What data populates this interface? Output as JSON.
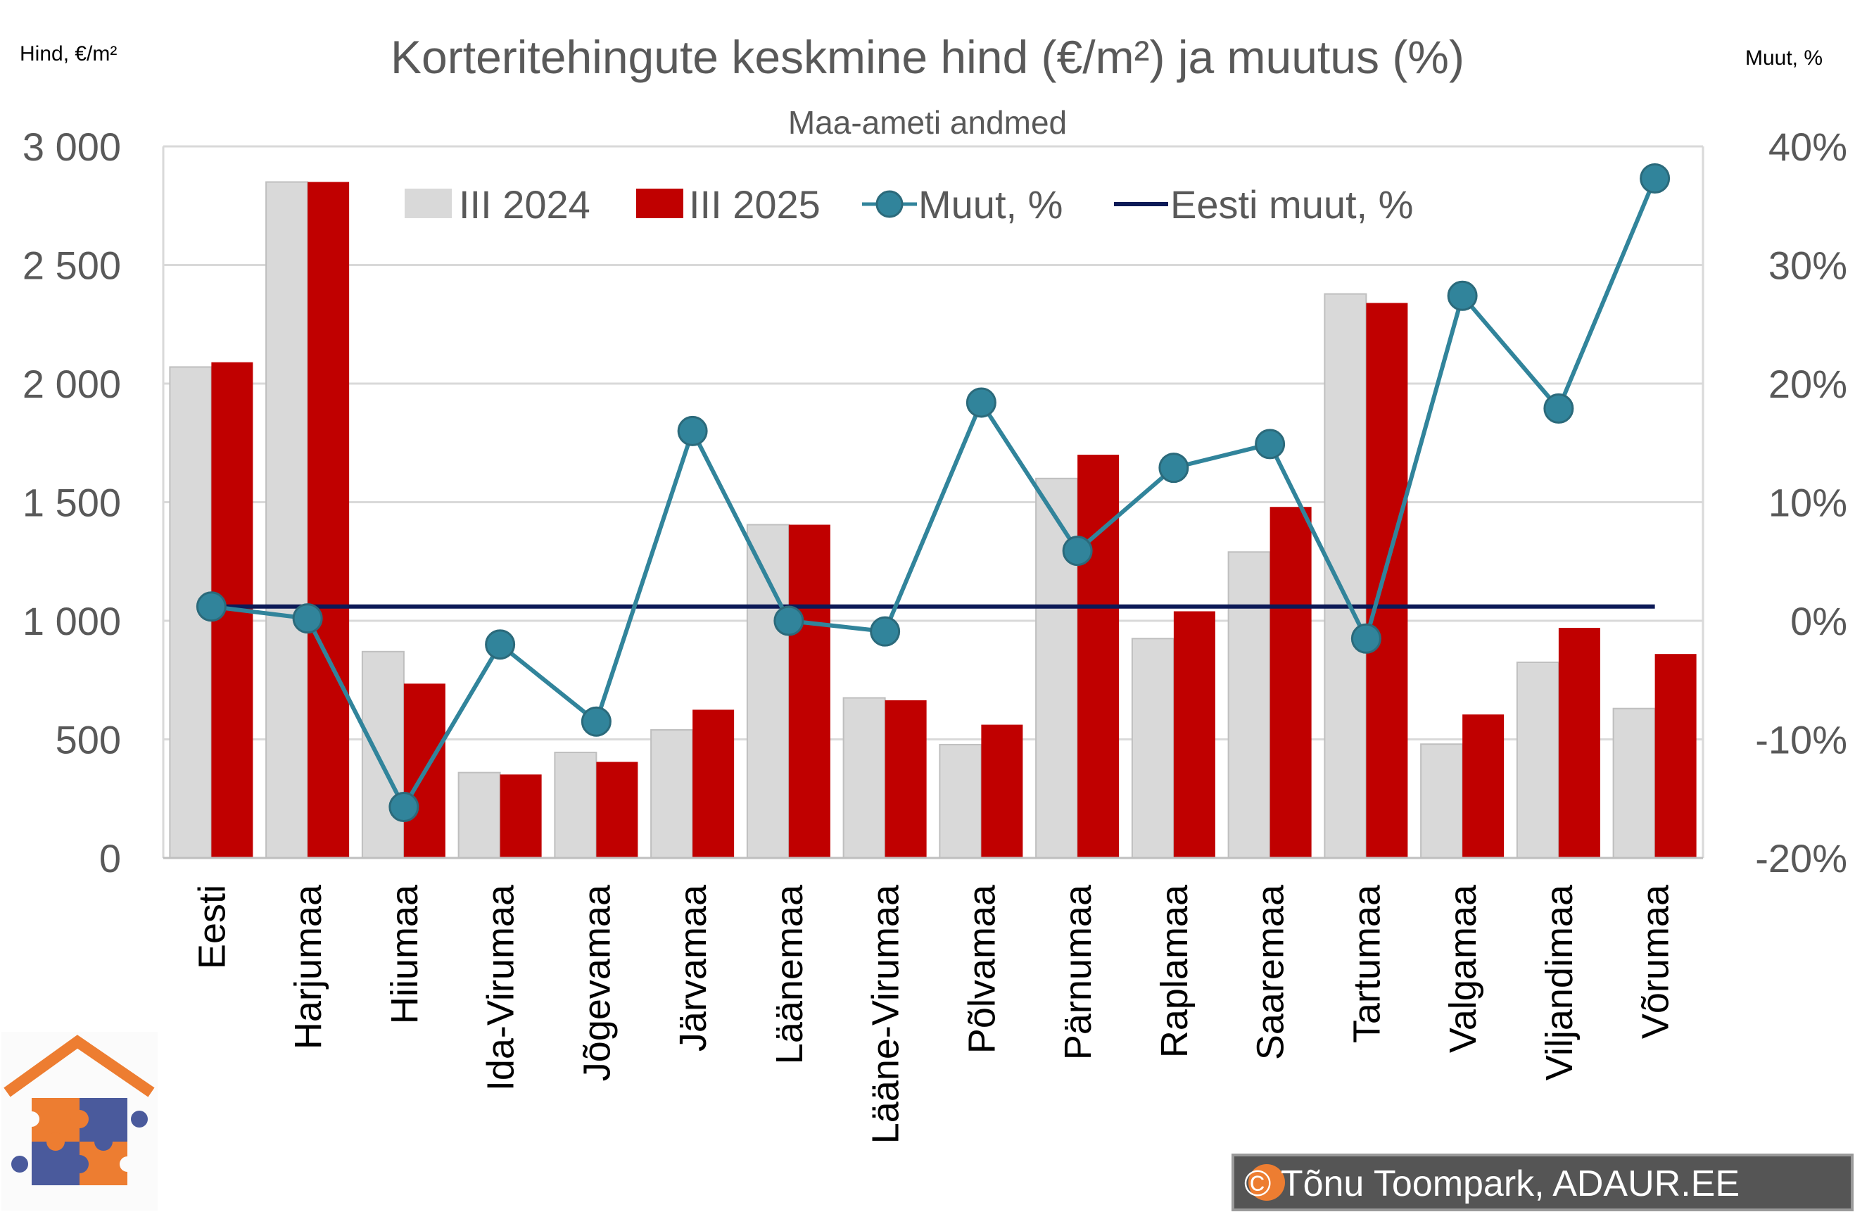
{
  "chart_data": {
    "type": "bar",
    "title": "Korteritehingute keskmine hind (€/m²) ja muutus (%)",
    "subtitle": "Maa-ameti andmed",
    "ylabel": "Hind, €/m²",
    "y2label": "Muut, %",
    "ylim": [
      0,
      3000
    ],
    "y2lim": [
      -20,
      40
    ],
    "yticks": [
      "0",
      "500",
      "1 000",
      "1 500",
      "2 000",
      "2 500",
      "3 000"
    ],
    "y2ticks": [
      "-20%",
      "-10%",
      "0%",
      "10%",
      "20%",
      "30%",
      "40%"
    ],
    "grid": true,
    "legend_position": "top",
    "categories": [
      "Eesti",
      "Harjumaa",
      "Hiiumaa",
      "Ida-Virumaa",
      "Jõgevamaa",
      "Järvamaa",
      "Läänemaa",
      "Lääne-Virumaa",
      "Põlvamaa",
      "Pärnumaa",
      "Raplamaa",
      "Saaremaa",
      "Tartumaa",
      "Valgamaa",
      "Viljandimaa",
      "Võrumaa"
    ],
    "series": [
      {
        "name": "III 2024",
        "type": "bar",
        "axis": "left",
        "color": "#d9d9d9",
        "values": [
          2070,
          2850,
          870,
          360,
          445,
          540,
          1405,
          675,
          478,
          1600,
          925,
          1290,
          2378,
          480,
          825,
          630
        ]
      },
      {
        "name": "III 2025",
        "type": "bar",
        "axis": "left",
        "color": "#c00000",
        "values": [
          2090,
          2850,
          735,
          352,
          405,
          625,
          1405,
          665,
          562,
          1700,
          1040,
          1480,
          2340,
          605,
          970,
          860
        ]
      },
      {
        "name": "Muut, %",
        "type": "line",
        "axis": "right",
        "color": "#31849b",
        "values": [
          1.2,
          0.2,
          -15.7,
          -2.0,
          -8.5,
          16.0,
          0.0,
          -0.9,
          18.4,
          5.9,
          12.9,
          14.9,
          -1.5,
          27.4,
          17.9,
          37.3
        ]
      },
      {
        "name": "Eesti muut, %",
        "type": "line",
        "axis": "right",
        "color": "#0c1a57",
        "values": [
          1.2,
          1.2,
          1.2,
          1.2,
          1.2,
          1.2,
          1.2,
          1.2,
          1.2,
          1.2,
          1.2,
          1.2,
          1.2,
          1.2,
          1.2,
          1.2
        ]
      }
    ]
  },
  "credit": "© Tõnu Toompark, ADAUR.EE",
  "colors": {
    "text": "#595959",
    "grid": "#d9d9d9",
    "bar_2024": "#d9d9d9",
    "bar_2025": "#c00000",
    "line_change": "#31849b",
    "line_estonia": "#0c1a57",
    "credit_bg": "#555555",
    "logo_orange": "#ed7d31",
    "logo_blue": "#4a5a9c"
  }
}
